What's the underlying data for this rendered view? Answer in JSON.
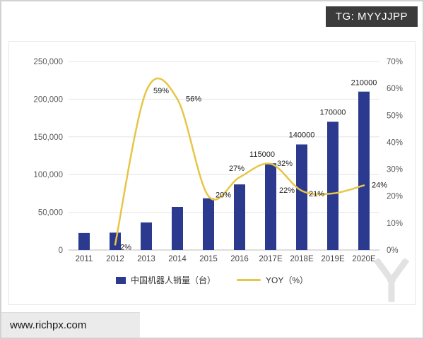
{
  "overlay": {
    "badge_text": "TG: MYYJJPP",
    "site_text": "www.richpx.com"
  },
  "chart_data": {
    "type": "bar",
    "subtype": "bar-line-combo",
    "title": "",
    "categories": [
      "2011",
      "2012",
      "2013",
      "2014",
      "2015",
      "2016",
      "2017E",
      "2018E",
      "2019E",
      "2020E"
    ],
    "series": [
      {
        "name": "中国机器人销量（台）",
        "type": "bar",
        "color": "#2b3a8f",
        "axis": "left",
        "values": [
          22577,
          22987,
          36560,
          57096,
          68556,
          87000,
          115000,
          140000,
          170000,
          210000
        ],
        "labels": [
          null,
          null,
          null,
          null,
          null,
          null,
          "115000",
          "140000",
          "170000",
          "210000"
        ]
      },
      {
        "name": "YOY（%）",
        "type": "line",
        "color": "#e6c647",
        "axis": "right",
        "values": [
          null,
          2,
          59,
          56,
          20,
          27,
          32,
          22,
          21,
          24
        ],
        "labels": [
          null,
          "2%",
          "59%",
          "56%",
          "20%",
          "27%",
          "32%",
          "22%",
          "21%",
          "24%"
        ]
      }
    ],
    "left_axis": {
      "min": 0,
      "max": 250000,
      "tick_labels": [
        "0",
        "50,000",
        "100,000",
        "150,000",
        "200,000",
        "250,000"
      ]
    },
    "right_axis": {
      "min": 0,
      "max": 70,
      "tick_labels": [
        "0%",
        "10%",
        "20%",
        "30%",
        "40%",
        "50%",
        "60%",
        "70%"
      ]
    },
    "legend": {
      "position": "bottom",
      "items": [
        "中国机器人销量（台）",
        "YOY（%）"
      ]
    },
    "grid": true
  }
}
